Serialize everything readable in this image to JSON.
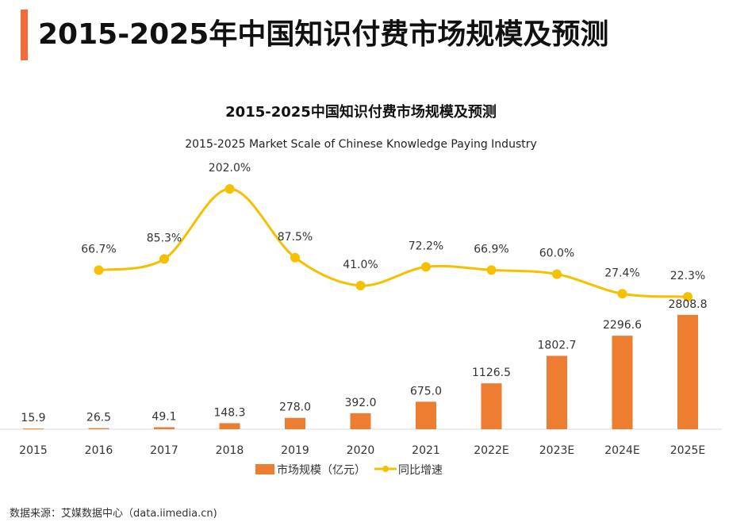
{
  "header": {
    "title": "2015-2025年中国知识付费市场规模及预测"
  },
  "source": "数据来源：艾媒数据中心（data.iimedia.cn)",
  "chart_data": {
    "type": "bar+line",
    "title": "2015-2025中国知识付费市场规模及预测",
    "subtitle": "2015-2025 Market Scale of Chinese Knowledge Paying Industry",
    "categories": [
      "2015",
      "2016",
      "2017",
      "2018",
      "2019",
      "2020",
      "2021",
      "2022E",
      "2023E",
      "2024E",
      "2025E"
    ],
    "series": [
      {
        "name": "市场规模（亿元）",
        "type": "bar",
        "color": "#ed7d31",
        "values": [
          15.9,
          26.5,
          49.1,
          148.3,
          278.0,
          392.0,
          675.0,
          1126.5,
          1802.7,
          2296.6,
          2808.8
        ],
        "labels": [
          "15.9",
          "26.5",
          "49.1",
          "148.3",
          "278.0",
          "392.0",
          "675.0",
          "1126.5",
          "1802.7",
          "2296.6",
          "2808.8"
        ]
      },
      {
        "name": "同比增速",
        "type": "line",
        "smooth": true,
        "color": "#f5c000",
        "values": [
          null,
          66.7,
          85.3,
          202.0,
          87.5,
          41.0,
          72.2,
          66.9,
          60.0,
          27.4,
          22.3
        ],
        "labels": [
          "",
          "66.7%",
          "85.3%",
          "202.0%",
          "87.5%",
          "41.0%",
          "72.2%",
          "66.9%",
          "60.0%",
          "27.4%",
          "22.3%"
        ]
      }
    ],
    "legend": "bottom",
    "grid": false
  }
}
